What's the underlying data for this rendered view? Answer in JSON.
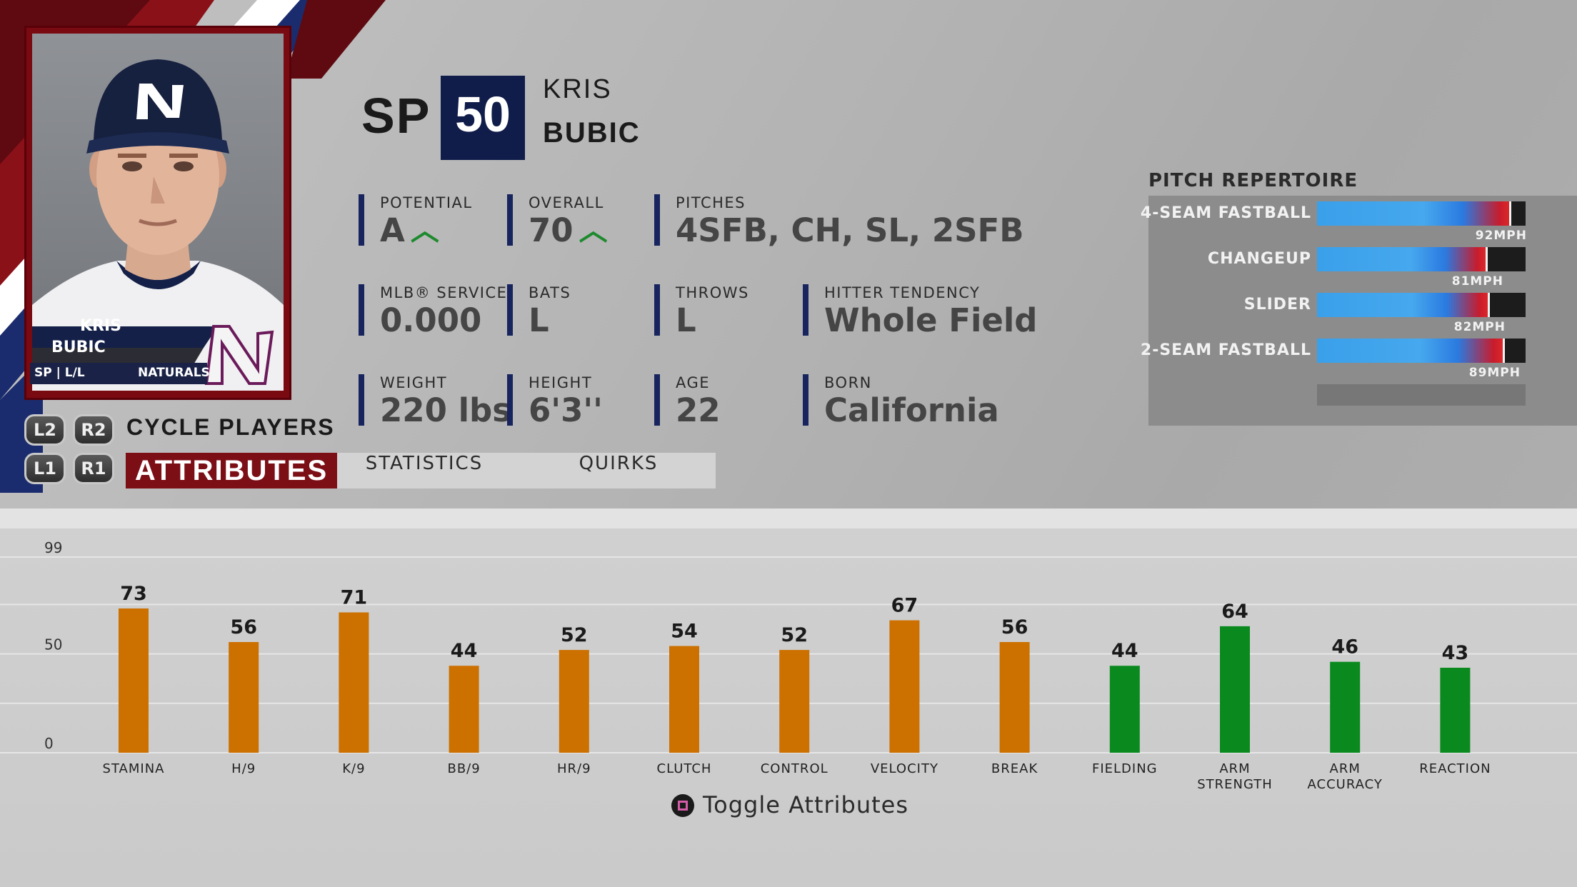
{
  "player": {
    "position": "SP",
    "overall_badge": "50",
    "first_name": "KRIS",
    "last_name": "BUBIC",
    "card": {
      "first_name": "KRIS",
      "last_name": "BUBIC",
      "pos_hand": "SP | L/L",
      "team": "NATURALS"
    }
  },
  "info": {
    "potential": {
      "label": "POTENTIAL",
      "value": "A"
    },
    "overall": {
      "label": "OVERALL",
      "value": "70"
    },
    "pitches": {
      "label": "PITCHES",
      "value": "4SFB, CH, SL, 2SFB"
    },
    "service": {
      "label": "MLB® SERVICE",
      "value": "0.000"
    },
    "bats": {
      "label": "BATS",
      "value": "L"
    },
    "throws": {
      "label": "THROWS",
      "value": "L"
    },
    "tendency": {
      "label": "HITTER TENDENCY",
      "value": "Whole Field"
    },
    "weight": {
      "label": "WEIGHT",
      "value": "220 lbs"
    },
    "height": {
      "label": "HEIGHT",
      "value": "6'3''"
    },
    "age": {
      "label": "AGE",
      "value": "22"
    },
    "born": {
      "label": "BORN",
      "value": "California"
    }
  },
  "pitch_repertoire": {
    "title": "PITCH REPERTOIRE",
    "pitches": [
      {
        "name": "4-SEAM FASTBALL",
        "speed": "92MPH",
        "rating": 0.93
      },
      {
        "name": "CHANGEUP",
        "speed": "81MPH",
        "rating": 0.82
      },
      {
        "name": "SLIDER",
        "speed": "82MPH",
        "rating": 0.83
      },
      {
        "name": "2-SEAM FASTBALL",
        "speed": "89MPH",
        "rating": 0.9
      }
    ]
  },
  "controls": {
    "l2": "L2",
    "r2": "R2",
    "l1": "L1",
    "r1": "R1",
    "cycle_players": "CYCLE PLAYERS",
    "tabs": {
      "attributes": "ATTRIBUTES",
      "statistics": "STATISTICS",
      "quirks": "QUIRKS"
    },
    "toggle_attributes": "Toggle Attributes"
  },
  "colors": {
    "pitching_bar": "#cc7000",
    "defense_bar": "#0a8a1e",
    "accent_red": "#7c0f16",
    "accent_navy": "#101c4a"
  },
  "chart_data": {
    "type": "bar",
    "y_ticks": [
      "99",
      "50",
      "0"
    ],
    "ylim": [
      0,
      99
    ],
    "grid": true,
    "series": [
      {
        "label": "STAMINA",
        "value": 73,
        "group": "pitching"
      },
      {
        "label": "H/9",
        "value": 56,
        "group": "pitching"
      },
      {
        "label": "K/9",
        "value": 71,
        "group": "pitching"
      },
      {
        "label": "BB/9",
        "value": 44,
        "group": "pitching"
      },
      {
        "label": "HR/9",
        "value": 52,
        "group": "pitching"
      },
      {
        "label": "CLUTCH",
        "value": 54,
        "group": "pitching"
      },
      {
        "label": "CONTROL",
        "value": 52,
        "group": "pitching"
      },
      {
        "label": "VELOCITY",
        "value": 67,
        "group": "pitching"
      },
      {
        "label": "BREAK",
        "value": 56,
        "group": "pitching"
      },
      {
        "label": "FIELDING",
        "value": 44,
        "group": "defense"
      },
      {
        "label": "ARM STRENGTH",
        "value": 64,
        "group": "defense"
      },
      {
        "label": "ARM ACCURACY",
        "value": 46,
        "group": "defense"
      },
      {
        "label": "REACTION",
        "value": 43,
        "group": "defense"
      }
    ]
  }
}
